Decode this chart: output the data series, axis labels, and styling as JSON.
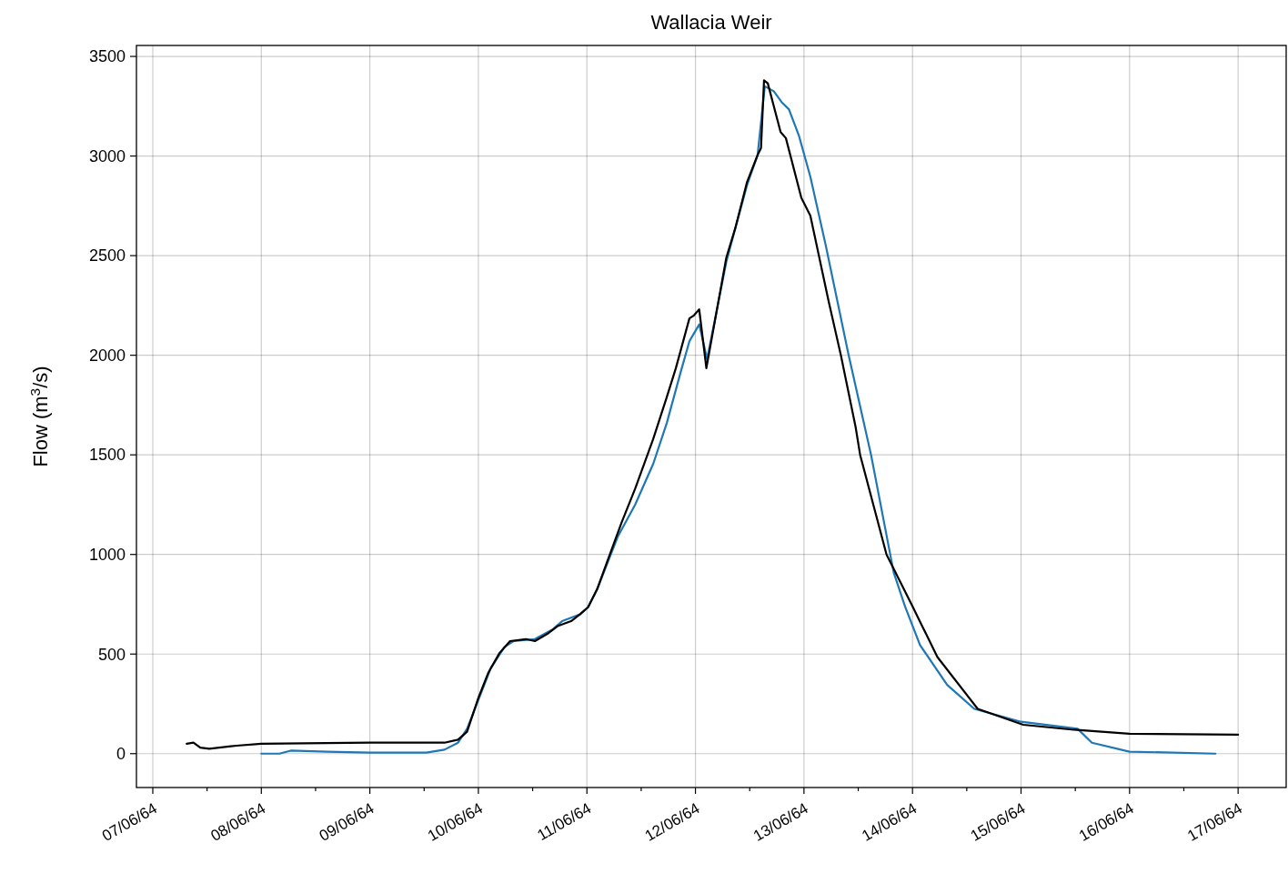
{
  "chart_data": {
    "type": "line",
    "title": "Wallacia Weir",
    "ylabel": "Flow (m$^{3}$/s)",
    "xlim": [
      "1964-06-06T20:23",
      "1964-06-17T10:38"
    ],
    "xticks": [
      {
        "value": "1964-06-07",
        "label": "07/06/64"
      },
      {
        "value": "1964-06-07T12:00",
        "label": null
      },
      {
        "value": "1964-06-08",
        "label": "08/06/64"
      },
      {
        "value": "1964-06-08T12:00",
        "label": null
      },
      {
        "value": "1964-06-09",
        "label": "09/06/64"
      },
      {
        "value": "1964-06-09T12:00",
        "label": null
      },
      {
        "value": "1964-06-10",
        "label": "10/06/64"
      },
      {
        "value": "1964-06-10T12:00",
        "label": null
      },
      {
        "value": "1964-06-11",
        "label": "11/06/64"
      },
      {
        "value": "1964-06-11T12:00",
        "label": null
      },
      {
        "value": "1964-06-12",
        "label": "12/06/64"
      },
      {
        "value": "1964-06-12T12:00",
        "label": null
      },
      {
        "value": "1964-06-13",
        "label": "13/06/64"
      },
      {
        "value": "1964-06-13T12:00",
        "label": null
      },
      {
        "value": "1964-06-14",
        "label": "14/06/64"
      },
      {
        "value": "1964-06-14T12:00",
        "label": null
      },
      {
        "value": "1964-06-15",
        "label": "15/06/64"
      },
      {
        "value": "1964-06-15T12:00",
        "label": null
      },
      {
        "value": "1964-06-16",
        "label": "16/06/64"
      },
      {
        "value": "1964-06-16T12:00",
        "label": null
      },
      {
        "value": "1964-06-17",
        "label": "17/06/64"
      }
    ],
    "ylim": [
      -170,
      3555
    ],
    "yticks": [
      0,
      500,
      1000,
      1500,
      2000,
      2500,
      3000,
      3500
    ],
    "grid": true,
    "series": [
      {
        "color": "#1f77b4",
        "x": [
          "1964-06-08T00:00",
          "1964-06-08T04:00",
          "1964-06-08T06:30",
          "1964-06-08T14:30",
          "1964-06-09T00:00",
          "1964-06-09T12:30",
          "1964-06-09T16:30",
          "1964-06-09T19:30",
          "1964-06-09T21:30",
          "1964-06-10T00:00",
          "1964-06-10T02:45",
          "1964-06-10T05:45",
          "1964-06-10T07:45",
          "1964-06-10T12:30",
          "1964-06-10T16:30",
          "1964-06-10T18:30",
          "1964-06-10T22:30",
          "1964-06-11T00:15",
          "1964-06-11T02:15",
          "1964-06-11T06:50",
          "1964-06-11T10:40",
          "1964-06-11T14:40",
          "1964-06-11T17:40",
          "1964-06-11T20:40",
          "1964-06-11T22:40",
          "1964-06-12T00:50",
          "1964-06-12T02:35",
          "1964-06-12T06:50",
          "1964-06-12T11:25",
          "1964-06-12T13:45",
          "1964-06-12T15:20",
          "1964-06-12T17:20",
          "1964-06-12T19:05",
          "1964-06-12T20:40",
          "1964-06-12T22:55",
          "1964-06-13T01:25",
          "1964-06-13T04:50",
          "1964-06-13T09:50",
          "1964-06-13T14:50",
          "1964-06-13T19:50",
          "1964-06-13T22:20",
          "1964-06-14T01:40",
          "1964-06-14T07:40",
          "1964-06-14T13:40",
          "1964-06-15T00:00",
          "1964-06-15T12:30",
          "1964-06-15T15:40",
          "1964-06-16T00:00",
          "1964-06-16T19:00"
        ],
        "values": [
          0,
          0,
          15,
          10,
          5,
          5,
          20,
          55,
          125,
          270,
          430,
          535,
          565,
          575,
          625,
          665,
          700,
          735,
          825,
          1090,
          1250,
          1455,
          1660,
          1910,
          2070,
          2155,
          1980,
          2470,
          2855,
          3005,
          3350,
          3325,
          3270,
          3235,
          3100,
          2895,
          2550,
          2005,
          1500,
          910,
          740,
          545,
          345,
          225,
          160,
          125,
          55,
          10,
          0
        ]
      },
      {
        "color": "#000000",
        "x": [
          "1964-06-07T07:30",
          "1964-06-07T09:00",
          "1964-06-07T10:30",
          "1964-06-07T12:30",
          "1964-06-07T18:30",
          "1964-06-08T00:00",
          "1964-06-09T00:00",
          "1964-06-09T16:30",
          "1964-06-09T19:30",
          "1964-06-09T21:30",
          "1964-06-10T00:00",
          "1964-06-10T02:10",
          "1964-06-10T04:40",
          "1964-06-10T07:00",
          "1964-06-10T10:30",
          "1964-06-10T12:30",
          "1964-06-10T15:30",
          "1964-06-10T17:30",
          "1964-06-10T20:30",
          "1964-06-10T22:30",
          "1964-06-11T00:15",
          "1964-06-11T02:15",
          "1964-06-11T04:40",
          "1964-06-11T07:40",
          "1964-06-11T10:40",
          "1964-06-11T14:40",
          "1964-06-11T17:40",
          "1964-06-11T19:40",
          "1964-06-11T22:40",
          "1964-06-11T23:40",
          "1964-06-12T00:50",
          "1964-06-12T02:25",
          "1964-06-12T06:50",
          "1964-06-12T08:50",
          "1964-06-12T11:25",
          "1964-06-12T13:45",
          "1964-06-12T14:30",
          "1964-06-12T15:10",
          "1964-06-12T16:00",
          "1964-06-12T18:50",
          "1964-06-12T20:00",
          "1964-06-12T23:25",
          "1964-06-13T01:25",
          "1964-06-13T05:25",
          "1964-06-13T08:10",
          "1964-06-13T11:25",
          "1964-06-13T12:25",
          "1964-06-13T18:15",
          "1964-06-14T00:00",
          "1964-06-14T05:30",
          "1964-06-14T14:25",
          "1964-06-15T00:30",
          "1964-06-15T11:40",
          "1964-06-16T00:00",
          "1964-06-17T00:00"
        ],
        "values": [
          50,
          55,
          30,
          25,
          40,
          50,
          55,
          55,
          70,
          110,
          280,
          405,
          505,
          565,
          575,
          565,
          605,
          640,
          665,
          700,
          735,
          825,
          975,
          1160,
          1330,
          1580,
          1790,
          1935,
          2185,
          2200,
          2230,
          1935,
          2490,
          2640,
          2870,
          3005,
          3040,
          3380,
          3365,
          3120,
          3090,
          2790,
          2700,
          2275,
          2000,
          1640,
          1500,
          1000,
          740,
          485,
          225,
          145,
          120,
          100,
          95
        ]
      }
    ]
  }
}
